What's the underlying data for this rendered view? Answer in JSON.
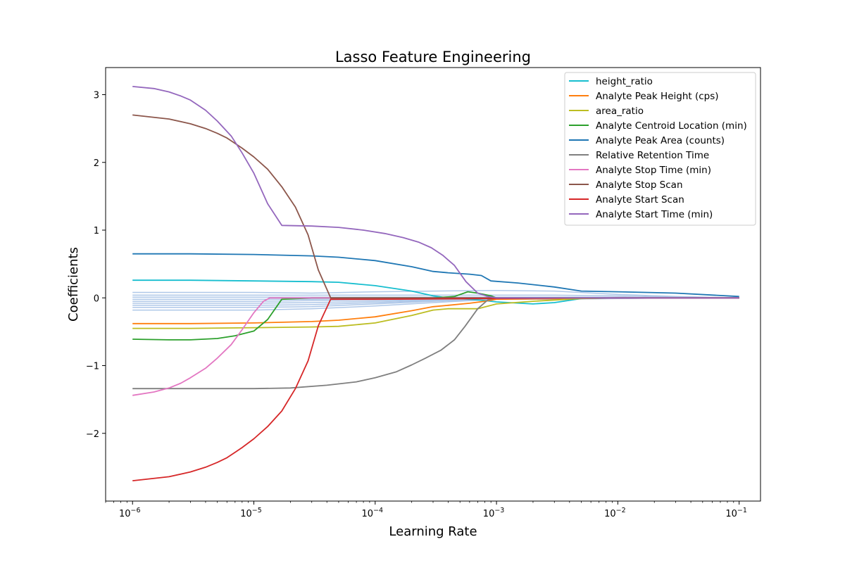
{
  "chart_data": {
    "type": "line",
    "title": "Lasso Feature Engineering",
    "xlabel": "Learning Rate",
    "ylabel": "Coefficients",
    "xscale": "log",
    "xlim": [
      6e-07,
      0.15
    ],
    "ylim": [
      -3.0,
      3.4
    ],
    "x_ticks": [
      1e-06,
      1e-05,
      0.0001,
      0.001,
      0.01,
      0.1
    ],
    "x_tick_labels": [
      {
        "base": "10",
        "exp": "−6"
      },
      {
        "base": "10",
        "exp": "−5"
      },
      {
        "base": "10",
        "exp": "−4"
      },
      {
        "base": "10",
        "exp": "−3"
      },
      {
        "base": "10",
        "exp": "−2"
      },
      {
        "base": "10",
        "exp": "−1"
      }
    ],
    "y_ticks": [
      -2,
      -1,
      0,
      1,
      2,
      3
    ],
    "y_tick_labels": [
      "−2",
      "−1",
      "0",
      "1",
      "2",
      "3"
    ],
    "grid": false,
    "legend_position": "top-right",
    "background_series_color": "#aec7e8",
    "background_series": [
      {
        "values": [
          0.08,
          0.08,
          0.07,
          0.09,
          0.1,
          0.11,
          0.1,
          0.05,
          0.02,
          0.0
        ]
      },
      {
        "values": [
          0.04,
          0.04,
          0.04,
          0.04,
          0.04,
          0.04,
          0.04,
          0.03,
          0.01,
          0.0
        ]
      },
      {
        "values": [
          0.01,
          0.01,
          0.01,
          0.01,
          0.01,
          0.01,
          0.01,
          0.01,
          0.0,
          0.0
        ]
      },
      {
        "values": [
          -0.02,
          -0.02,
          -0.02,
          -0.01,
          -0.01,
          0.0,
          0.0,
          0.0,
          0.0,
          0.0
        ]
      },
      {
        "values": [
          -0.05,
          -0.05,
          -0.04,
          -0.03,
          -0.02,
          0.0,
          0.0,
          0.0,
          0.0,
          0.0
        ]
      },
      {
        "values": [
          -0.08,
          -0.08,
          -0.07,
          -0.05,
          -0.03,
          -0.01,
          0.0,
          0.0,
          0.0,
          0.0
        ]
      },
      {
        "values": [
          -0.11,
          -0.11,
          -0.1,
          -0.07,
          -0.04,
          -0.01,
          -0.01,
          0.0,
          0.0,
          0.0
        ]
      },
      {
        "values": [
          -0.14,
          -0.14,
          -0.13,
          -0.09,
          -0.05,
          -0.02,
          -0.01,
          -0.01,
          0.0,
          0.0
        ]
      },
      {
        "values": [
          -0.18,
          -0.18,
          -0.16,
          -0.12,
          -0.07,
          -0.02,
          -0.02,
          -0.01,
          0.0,
          0.0
        ]
      }
    ],
    "background_x": [
      1e-06,
      1e-05,
      3e-05,
      0.0001,
      0.0003,
      0.001,
      0.003,
      0.01,
      0.03,
      0.1
    ],
    "series": [
      {
        "name": "height_ratio",
        "color": "#17becf",
        "x": [
          1e-06,
          3e-06,
          1e-05,
          3e-05,
          5e-05,
          0.0001,
          0.0002,
          0.0003,
          0.0004,
          0.0006,
          0.0008,
          0.001,
          0.002,
          0.003,
          0.005,
          0.01,
          0.1
        ],
        "y": [
          0.26,
          0.26,
          0.25,
          0.24,
          0.23,
          0.18,
          0.1,
          0.03,
          0.0,
          -0.02,
          -0.04,
          -0.06,
          -0.09,
          -0.07,
          -0.01,
          0.0,
          0.0
        ]
      },
      {
        "name": "Analyte Peak Height (cps)",
        "color": "#ff7f0e",
        "x": [
          1e-06,
          3e-06,
          1e-05,
          3e-05,
          5e-05,
          0.0001,
          0.0002,
          0.0003,
          0.0004,
          0.0006,
          0.0008,
          0.001,
          0.01,
          0.1
        ],
        "y": [
          -0.38,
          -0.38,
          -0.37,
          -0.35,
          -0.33,
          -0.28,
          -0.19,
          -0.13,
          -0.11,
          -0.08,
          -0.05,
          -0.02,
          0.0,
          0.0
        ]
      },
      {
        "name": "area_ratio",
        "color": "#bcbd22",
        "x": [
          1e-06,
          3e-06,
          1e-05,
          3e-05,
          5e-05,
          0.0001,
          0.0002,
          0.0003,
          0.0004,
          0.0007,
          0.001,
          0.002,
          0.005,
          0.01,
          0.1
        ],
        "y": [
          -0.45,
          -0.45,
          -0.44,
          -0.43,
          -0.42,
          -0.37,
          -0.26,
          -0.18,
          -0.16,
          -0.16,
          -0.09,
          -0.05,
          -0.01,
          0.0,
          0.0
        ]
      },
      {
        "name": "Analyte Centroid Location (min)",
        "color": "#2ca02c",
        "x": [
          1e-06,
          2e-06,
          3e-06,
          5e-06,
          7e-06,
          1e-05,
          1.3e-05,
          1.7e-05,
          3e-05,
          0.0001,
          0.0003,
          0.00045,
          0.00058,
          0.0007,
          0.0009,
          0.001,
          0.01,
          0.1
        ],
        "y": [
          -0.61,
          -0.62,
          -0.62,
          -0.6,
          -0.56,
          -0.49,
          -0.32,
          -0.02,
          0.0,
          0.0,
          0.0,
          0.02,
          0.09,
          0.07,
          0.03,
          0.0,
          0.0,
          0.0
        ]
      },
      {
        "name": "Analyte Peak Area (counts)",
        "color": "#1f77b4",
        "x": [
          1e-06,
          3e-06,
          1e-05,
          3e-05,
          5e-05,
          0.0001,
          0.0002,
          0.0003,
          0.0004,
          0.0006,
          0.00075,
          0.0009,
          0.0015,
          0.003,
          0.005,
          0.01,
          0.03,
          0.1
        ],
        "y": [
          0.65,
          0.65,
          0.64,
          0.62,
          0.6,
          0.55,
          0.46,
          0.39,
          0.37,
          0.35,
          0.33,
          0.25,
          0.22,
          0.16,
          0.1,
          0.09,
          0.07,
          0.02
        ]
      },
      {
        "name": "Relative Retention Time",
        "color": "#7f7f7f",
        "x": [
          1e-06,
          3e-06,
          1e-05,
          2e-05,
          4e-05,
          7e-05,
          0.0001,
          0.00015,
          0.0002,
          0.00026,
          0.00035,
          0.00045,
          0.00055,
          0.0007,
          0.00085,
          0.001,
          0.01,
          0.1
        ],
        "y": [
          -1.34,
          -1.34,
          -1.34,
          -1.33,
          -1.29,
          -1.24,
          -1.18,
          -1.09,
          -0.99,
          -0.89,
          -0.77,
          -0.62,
          -0.42,
          -0.16,
          -0.03,
          0.0,
          0.0,
          0.0
        ]
      },
      {
        "name": "Analyte Stop Time (min)",
        "color": "#e377c2",
        "x": [
          1e-06,
          1.5e-06,
          2e-06,
          2.5e-06,
          3e-06,
          4e-06,
          5e-06,
          6.5e-06,
          8e-06,
          1e-05,
          1.2e-05,
          1.35e-05,
          2e-05,
          0.0001,
          0.001,
          0.01,
          0.1
        ],
        "y": [
          -1.44,
          -1.39,
          -1.33,
          -1.26,
          -1.18,
          -1.04,
          -0.89,
          -0.69,
          -0.47,
          -0.22,
          -0.05,
          0.0,
          0.0,
          0.0,
          0.0,
          0.0,
          0.0
        ]
      },
      {
        "name": "Analyte Stop Scan",
        "color": "#8c564b",
        "x": [
          1e-06,
          2e-06,
          3e-06,
          4e-06,
          5e-06,
          6e-06,
          7e-06,
          8e-06,
          1e-05,
          1.3e-05,
          1.7e-05,
          2.2e-05,
          2.8e-05,
          3.4e-05,
          4.3e-05,
          0.0001,
          0.001,
          0.01,
          0.1
        ],
        "y": [
          2.7,
          2.64,
          2.57,
          2.5,
          2.43,
          2.36,
          2.28,
          2.21,
          2.08,
          1.9,
          1.64,
          1.34,
          0.93,
          0.41,
          0.0,
          0.0,
          0.0,
          0.0,
          0.0
        ]
      },
      {
        "name": "Analyte Start Scan",
        "color": "#d62728",
        "x": [
          1e-06,
          2e-06,
          3e-06,
          4e-06,
          5e-06,
          6e-06,
          7e-06,
          8e-06,
          1e-05,
          1.3e-05,
          1.7e-05,
          2.2e-05,
          2.8e-05,
          3.4e-05,
          4.3e-05,
          0.0001,
          0.001,
          0.01,
          0.1
        ],
        "y": [
          -2.7,
          -2.64,
          -2.57,
          -2.5,
          -2.43,
          -2.36,
          -2.28,
          -2.21,
          -2.08,
          -1.9,
          -1.67,
          -1.34,
          -0.93,
          -0.41,
          -0.02,
          -0.02,
          -0.01,
          0.0,
          0.0
        ]
      },
      {
        "name": "Analyte Start Time (min)",
        "color": "#9467bd",
        "x": [
          1e-06,
          1.5e-06,
          2e-06,
          2.5e-06,
          3e-06,
          4e-06,
          5e-06,
          6.5e-06,
          8e-06,
          1e-05,
          1.3e-05,
          1.7e-05,
          3e-05,
          5e-05,
          8e-05,
          0.00012,
          0.00017,
          0.00023,
          0.00029,
          0.00036,
          0.00045,
          0.00056,
          0.0007,
          0.00085,
          0.001,
          0.01,
          0.1
        ],
        "y": [
          3.12,
          3.09,
          3.04,
          2.98,
          2.92,
          2.77,
          2.61,
          2.39,
          2.14,
          1.84,
          1.39,
          1.07,
          1.06,
          1.04,
          1.0,
          0.95,
          0.89,
          0.82,
          0.74,
          0.63,
          0.48,
          0.24,
          0.07,
          0.02,
          0.0,
          0.0,
          0.0
        ]
      }
    ]
  }
}
